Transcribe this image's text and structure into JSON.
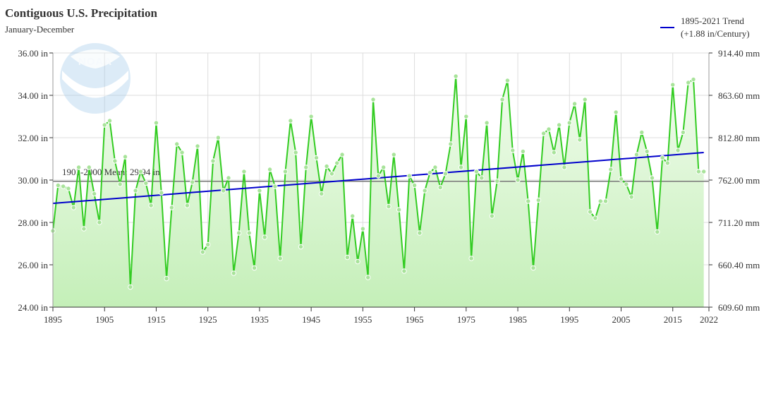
{
  "chart_data": {
    "type": "line",
    "title": "Contiguous U.S. Precipitation",
    "subtitle": "January-December",
    "x": [
      1895,
      1896,
      1897,
      1898,
      1899,
      1900,
      1901,
      1902,
      1903,
      1904,
      1905,
      1906,
      1907,
      1908,
      1909,
      1910,
      1911,
      1912,
      1913,
      1914,
      1915,
      1916,
      1917,
      1918,
      1919,
      1920,
      1921,
      1922,
      1923,
      1924,
      1925,
      1926,
      1927,
      1928,
      1929,
      1930,
      1931,
      1932,
      1933,
      1934,
      1935,
      1936,
      1937,
      1938,
      1939,
      1940,
      1941,
      1942,
      1943,
      1944,
      1945,
      1946,
      1947,
      1948,
      1949,
      1950,
      1951,
      1952,
      1953,
      1954,
      1955,
      1956,
      1957,
      1958,
      1959,
      1960,
      1961,
      1962,
      1963,
      1964,
      1965,
      1966,
      1967,
      1968,
      1969,
      1970,
      1971,
      1972,
      1973,
      1974,
      1975,
      1976,
      1977,
      1978,
      1979,
      1980,
      1981,
      1982,
      1983,
      1984,
      1985,
      1986,
      1987,
      1988,
      1989,
      1990,
      1991,
      1992,
      1993,
      1994,
      1995,
      1996,
      1997,
      1998,
      1999,
      2000,
      2001,
      2002,
      2003,
      2004,
      2005,
      2006,
      2007,
      2008,
      2009,
      2010,
      2011,
      2012,
      2013,
      2014,
      2015,
      2016,
      2017,
      2018,
      2019,
      2020,
      2021
    ],
    "series": [
      {
        "values": [
          27.6,
          29.75,
          29.7,
          29.6,
          28.7,
          30.6,
          27.7,
          30.6,
          29.35,
          28.0,
          32.6,
          32.8,
          30.9,
          29.8,
          31.1,
          24.95,
          29.5,
          30.4,
          29.85,
          28.8,
          32.7,
          29.4,
          25.35,
          28.7,
          31.7,
          31.3,
          28.8,
          29.9,
          31.6,
          26.6,
          26.95,
          30.9,
          32.0,
          29.5,
          30.1,
          25.6,
          27.5,
          30.4,
          27.5,
          25.85,
          29.5,
          27.3,
          30.5,
          29.7,
          26.3,
          30.4,
          32.8,
          31.3,
          26.85,
          30.6,
          33.0,
          31.05,
          29.35,
          30.65,
          30.3,
          30.8,
          31.2,
          26.35,
          28.3,
          26.15,
          27.7,
          25.4,
          33.8,
          30.2,
          30.6,
          28.75,
          31.2,
          28.6,
          25.7,
          30.2,
          29.75,
          27.5,
          29.5,
          30.35,
          30.6,
          29.65,
          30.3,
          31.7,
          34.9,
          30.6,
          33.0,
          26.3,
          30.4,
          30.1,
          32.7,
          28.3,
          29.95,
          33.8,
          34.7,
          31.4,
          30.0,
          31.35,
          29.0,
          25.85,
          29.05,
          32.2,
          32.4,
          31.3,
          32.6,
          30.6,
          32.7,
          33.6,
          31.9,
          33.8,
          28.5,
          28.2,
          29.0,
          29.0,
          30.5,
          33.2,
          30.05,
          29.8,
          29.2,
          31.2,
          32.25,
          31.35,
          30.1,
          27.55,
          31.05,
          30.8,
          34.5,
          31.4,
          32.25,
          34.6,
          34.75,
          30.4,
          30.4
        ]
      }
    ],
    "trend": {
      "label_line1": "1895-2021 Trend",
      "label_line2": "(+1.88 in/Century)",
      "start": 28.9,
      "end": 31.3,
      "color": "#0000cc"
    },
    "mean": {
      "label": "1901-2000 Mean: 29.94 in",
      "value": 29.94
    },
    "xlim": [
      1895,
      2022
    ],
    "ylim": [
      24,
      36
    ],
    "xticks": [
      "1895",
      "1905",
      "1915",
      "1925",
      "1935",
      "1945",
      "1955",
      "1965",
      "1975",
      "1985",
      "1995",
      "2005",
      "2015",
      "2022"
    ],
    "yticks_left": [
      "24.00 in",
      "26.00 in",
      "28.00 in",
      "30.00 in",
      "32.00 in",
      "34.00 in",
      "36.00 in"
    ],
    "yticks_right": [
      "609.60 mm",
      "660.40 mm",
      "711.20 mm",
      "762.00 mm",
      "812.80 mm",
      "863.60 mm",
      "914.40 mm"
    ],
    "grid": true,
    "legend_position": "top-right",
    "colors": {
      "series": "#33cc22",
      "fill_top": "#f2fcee",
      "fill_bottom": "#c4efb8",
      "trend": "#0000cc",
      "mean": "#777777",
      "grid": "#dddddd"
    },
    "watermark": "NOAA"
  }
}
